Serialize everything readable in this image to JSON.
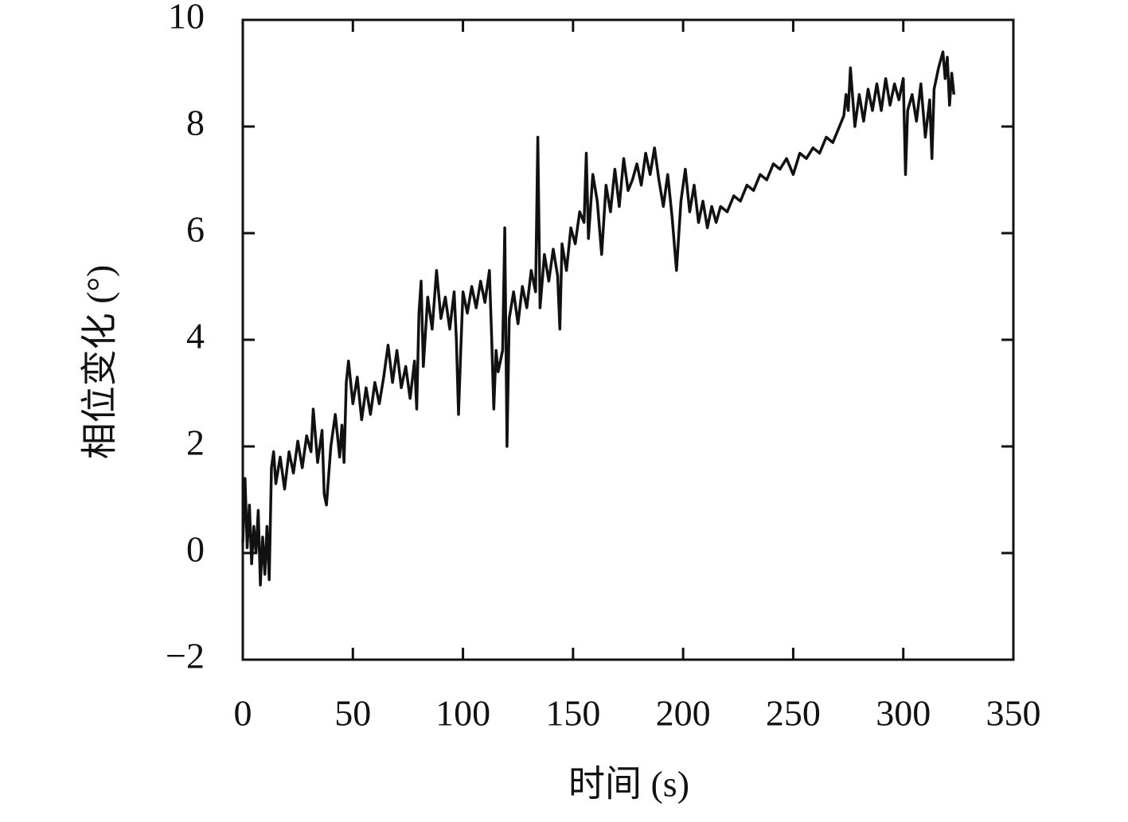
{
  "chart_data": {
    "type": "line",
    "xlabel": "时间 (s)",
    "ylabel": "相位变化 (°)",
    "color": "#111111",
    "xlim": [
      0,
      350
    ],
    "xticks": [
      0,
      50,
      100,
      150,
      200,
      250,
      300,
      350
    ],
    "ylim": [
      -2,
      10
    ],
    "yticks": [
      {
        "value": -2,
        "label": "−2"
      },
      0,
      2,
      4,
      6,
      8,
      10
    ],
    "grid": false,
    "x": [
      0,
      1,
      2,
      3,
      4,
      5,
      6,
      7,
      8,
      9,
      10,
      11,
      12,
      13,
      14,
      15,
      17,
      19,
      21,
      23,
      25,
      27,
      29,
      31,
      32,
      34,
      36,
      37,
      38,
      40,
      42,
      44,
      45,
      46,
      47,
      48,
      50,
      52,
      54,
      56,
      58,
      60,
      62,
      64,
      66,
      68,
      70,
      72,
      74,
      76,
      78,
      79,
      80,
      81,
      82,
      84,
      86,
      88,
      90,
      92,
      94,
      96,
      97,
      98,
      99,
      100,
      102,
      104,
      106,
      108,
      110,
      112,
      113,
      114,
      115,
      116,
      118,
      119,
      120,
      121,
      123,
      125,
      127,
      129,
      131,
      133,
      134,
      135,
      137,
      139,
      141,
      143,
      144,
      145,
      147,
      149,
      151,
      153,
      155,
      156,
      157,
      159,
      161,
      163,
      165,
      167,
      169,
      171,
      173,
      175,
      177,
      179,
      181,
      183,
      185,
      187,
      189,
      191,
      193,
      195,
      197,
      199,
      201,
      203,
      205,
      207,
      209,
      211,
      213,
      215,
      217,
      220,
      223,
      226,
      229,
      232,
      235,
      238,
      241,
      244,
      247,
      250,
      253,
      256,
      259,
      262,
      265,
      268,
      271,
      273,
      274,
      275,
      276,
      278,
      280,
      282,
      284,
      286,
      288,
      290,
      292,
      294,
      296,
      298,
      300,
      301,
      302,
      304,
      306,
      308,
      310,
      312,
      313,
      314,
      316,
      318,
      319,
      320,
      321,
      322,
      323
    ],
    "values": [
      0.2,
      1.4,
      0.1,
      0.9,
      -0.2,
      0.5,
      0.0,
      0.8,
      -0.6,
      0.3,
      -0.4,
      0.5,
      -0.5,
      1.6,
      1.9,
      1.3,
      1.8,
      1.2,
      1.9,
      1.5,
      2.1,
      1.6,
      2.2,
      1.9,
      2.7,
      1.7,
      2.3,
      1.1,
      0.9,
      2.0,
      2.6,
      1.8,
      2.4,
      1.7,
      3.2,
      3.6,
      2.8,
      3.3,
      2.5,
      3.1,
      2.6,
      3.2,
      2.8,
      3.3,
      3.9,
      3.2,
      3.8,
      3.1,
      3.5,
      2.9,
      3.6,
      2.7,
      4.5,
      5.1,
      3.5,
      4.8,
      4.2,
      5.3,
      4.4,
      4.8,
      4.2,
      4.9,
      4.0,
      2.6,
      3.8,
      4.9,
      4.5,
      5.0,
      4.6,
      5.1,
      4.7,
      5.3,
      4.1,
      2.7,
      3.8,
      3.4,
      3.8,
      6.1,
      2.0,
      4.4,
      4.9,
      4.3,
      5.0,
      4.6,
      5.3,
      4.9,
      7.8,
      4.6,
      5.6,
      5.1,
      5.7,
      5.2,
      4.2,
      5.8,
      5.3,
      6.1,
      5.8,
      6.4,
      6.2,
      7.5,
      5.9,
      7.1,
      6.6,
      5.6,
      6.9,
      6.4,
      7.2,
      6.5,
      7.4,
      6.8,
      7.0,
      7.3,
      6.9,
      7.5,
      7.1,
      7.6,
      7.0,
      6.5,
      7.1,
      6.3,
      5.3,
      6.6,
      7.2,
      6.4,
      6.9,
      6.2,
      6.6,
      6.1,
      6.5,
      6.2,
      6.5,
      6.4,
      6.7,
      6.6,
      6.9,
      6.8,
      7.1,
      7.0,
      7.3,
      7.2,
      7.4,
      7.1,
      7.5,
      7.4,
      7.6,
      7.5,
      7.8,
      7.7,
      8.0,
      8.2,
      8.6,
      8.3,
      9.1,
      8.0,
      8.6,
      8.1,
      8.7,
      8.3,
      8.8,
      8.3,
      8.9,
      8.4,
      8.8,
      8.5,
      8.9,
      7.1,
      8.3,
      8.6,
      8.1,
      8.8,
      7.8,
      8.5,
      7.4,
      8.7,
      9.1,
      9.4,
      8.9,
      9.3,
      8.4,
      9.0,
      8.6
    ]
  }
}
